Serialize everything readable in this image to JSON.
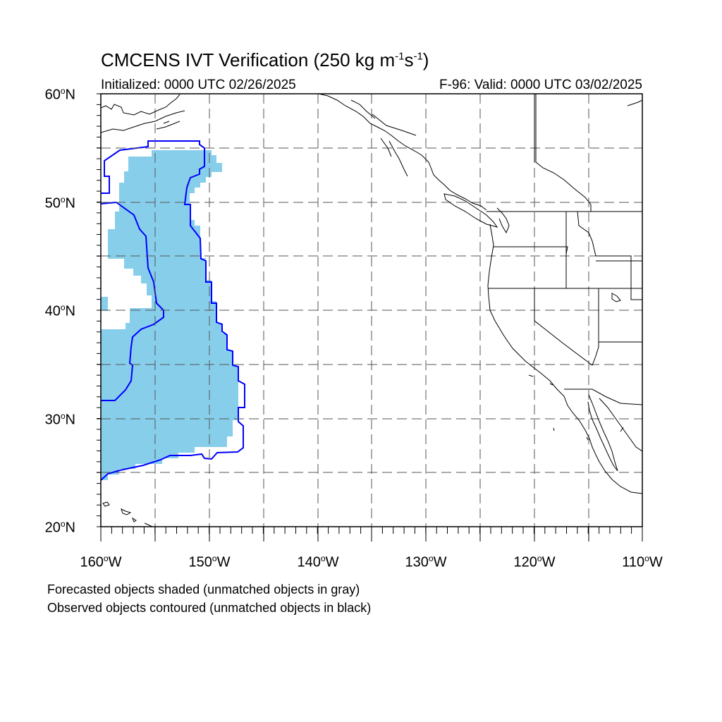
{
  "header": {
    "title_main": "CMCENS IVT Verification (250 kg m",
    "title_exp1": "-1",
    "title_mid": "s",
    "title_exp2": "-1",
    "title_end": ")",
    "initialized": "Initialized: 0000 UTC 02/26/2025",
    "valid": "F-96: Valid: 0000 UTC 03/02/2025"
  },
  "map": {
    "lon_range": [
      -160,
      -110
    ],
    "lat_range": [
      20,
      60
    ],
    "grid_lons": [
      -155,
      -150,
      -145,
      -140,
      -135,
      -130,
      -125,
      -120,
      -115
    ],
    "grid_lats": [
      25,
      30,
      35,
      40,
      45,
      50,
      55
    ],
    "lat_labels": [
      {
        "lat": 60,
        "deg": "60",
        "hemi": "N"
      },
      {
        "lat": 50,
        "deg": "50",
        "hemi": "N"
      },
      {
        "lat": 40,
        "deg": "40",
        "hemi": "N"
      },
      {
        "lat": 30,
        "deg": "30",
        "hemi": "N"
      },
      {
        "lat": 20,
        "deg": "20",
        "hemi": "N"
      }
    ],
    "lon_labels": [
      {
        "lon": -160,
        "deg": "160",
        "hemi": "W"
      },
      {
        "lon": -150,
        "deg": "150",
        "hemi": "W"
      },
      {
        "lon": -140,
        "deg": "140",
        "hemi": "W"
      },
      {
        "lon": -130,
        "deg": "130",
        "hemi": "W"
      },
      {
        "lon": -120,
        "deg": "120",
        "hemi": "W"
      },
      {
        "lon": -110,
        "deg": "110",
        "hemi": "W"
      }
    ],
    "colors": {
      "forecast_fill": "#87CEEB",
      "observed_contour": "#0000FF",
      "coastline": "#000000",
      "grid": "#555555"
    }
  },
  "notes": {
    "line1": "Forecasted objects shaded (unmatched objects in gray)",
    "line2": "Observed objects contoured (unmatched objects in black)"
  }
}
